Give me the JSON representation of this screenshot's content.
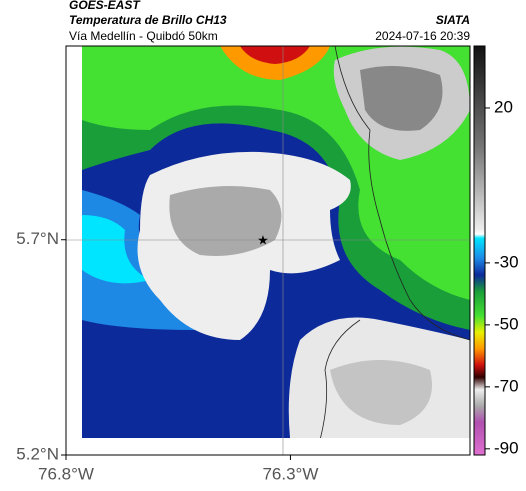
{
  "header": {
    "title": "GOES-EAST",
    "subtitle": "Temperatura de Brillo CH13",
    "route": "Vía Medellín - Quibdó 50km",
    "source": "SIATA",
    "timestamp": "2024-07-16 20:39"
  },
  "map": {
    "xlim": [
      -76.8,
      -75.9
    ],
    "ylim": [
      5.2,
      6.15
    ],
    "xticks": [
      {
        "value": -76.8,
        "label": "76.8°W"
      },
      {
        "value": -76.3,
        "label": "76.3°W"
      }
    ],
    "yticks": [
      {
        "value": 5.2,
        "label": "5.2°N"
      },
      {
        "value": 5.7,
        "label": "5.7°N"
      }
    ]
  },
  "colorbar": {
    "lim": [
      -92,
      40
    ],
    "ticks": [
      20,
      -30,
      -50,
      -70,
      -90
    ]
  }
}
